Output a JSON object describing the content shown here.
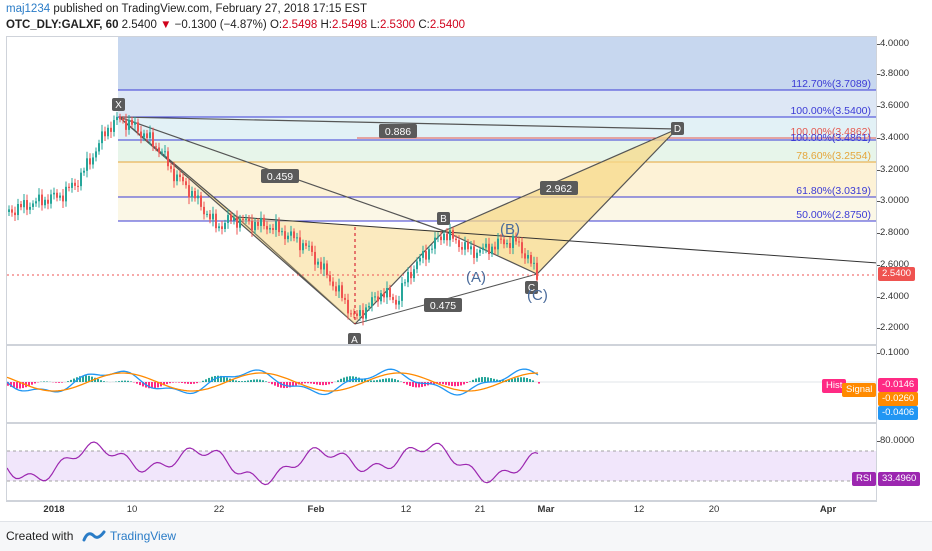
{
  "header": {
    "author": "maj1234",
    "published_text": "published on TradingView.com, February 27, 2018 17:15 EST",
    "symbol": "OTC_DLY:GALXF, 60",
    "last": "2.5400",
    "change": "−0.1300 (−4.87%)",
    "o_label": "O:",
    "o": "2.5498",
    "h_label": "H:",
    "h": "2.5498",
    "l_label": "L:",
    "l": "2.5300",
    "c_label": "C:",
    "c": "2.5400"
  },
  "price_scale": [
    "4.0000",
    "3.8000",
    "3.6000",
    "3.4000",
    "3.2000",
    "3.0000",
    "2.8000",
    "2.6000",
    "2.4000",
    "2.2000"
  ],
  "price_tag": "2.5400",
  "fib_levels": [
    {
      "label": "112.70%(3.7089)",
      "price": 3.7089
    },
    {
      "label": "100.00%(3.5400)",
      "price": 3.54
    },
    {
      "label": "100.00%(3.4862)",
      "price": 3.4862
    },
    {
      "label": "100.00%(3.4861)",
      "price": 3.4861
    },
    {
      "label": "78.60%(3.2554)",
      "price": 3.2554
    },
    {
      "label": "61.80%(3.0319)",
      "price": 3.0319
    },
    {
      "label": "50.00%(2.8750)",
      "price": 2.875
    }
  ],
  "pattern": {
    "points": {
      "X": "X",
      "A": "A",
      "B": "B",
      "C": "C",
      "D": "D"
    },
    "ratios": {
      "xb": "0.886",
      "ab_left": "0.459",
      "ac": "0.475",
      "bd": "2.962"
    },
    "sub_labels": {
      "ab": "(A)",
      "bb": "(B)",
      "cc": "(C)"
    }
  },
  "macd": {
    "scale": [
      "0.1000"
    ],
    "tags": [
      {
        "label": "Hist",
        "color": "#ff2a84"
      },
      {
        "label": "Signal",
        "color": "#ff8a00"
      }
    ],
    "values": [
      {
        "value": "-0.0146",
        "color": "#ff2a84"
      },
      {
        "value": "-0.0260",
        "color": "#ff8a00"
      },
      {
        "value": "-0.0406",
        "color": "#2196f3"
      }
    ]
  },
  "rsi": {
    "scale": [
      "80.0000"
    ],
    "tag": "RSI",
    "value": "33.4960"
  },
  "x_axis": [
    "2018",
    "10",
    "22",
    "Feb",
    "12",
    "21",
    "Mar",
    "12",
    "20",
    "Apr"
  ],
  "footer": {
    "created": "Created with",
    "brand": "TradingView"
  },
  "colors": {
    "up": "#26a69a",
    "down": "#ef5350",
    "pattern_fill": "#f7d98a",
    "pattern_line": "#555555",
    "fib_line": "#3b3bd6",
    "price_tag": "#ef5350"
  }
}
